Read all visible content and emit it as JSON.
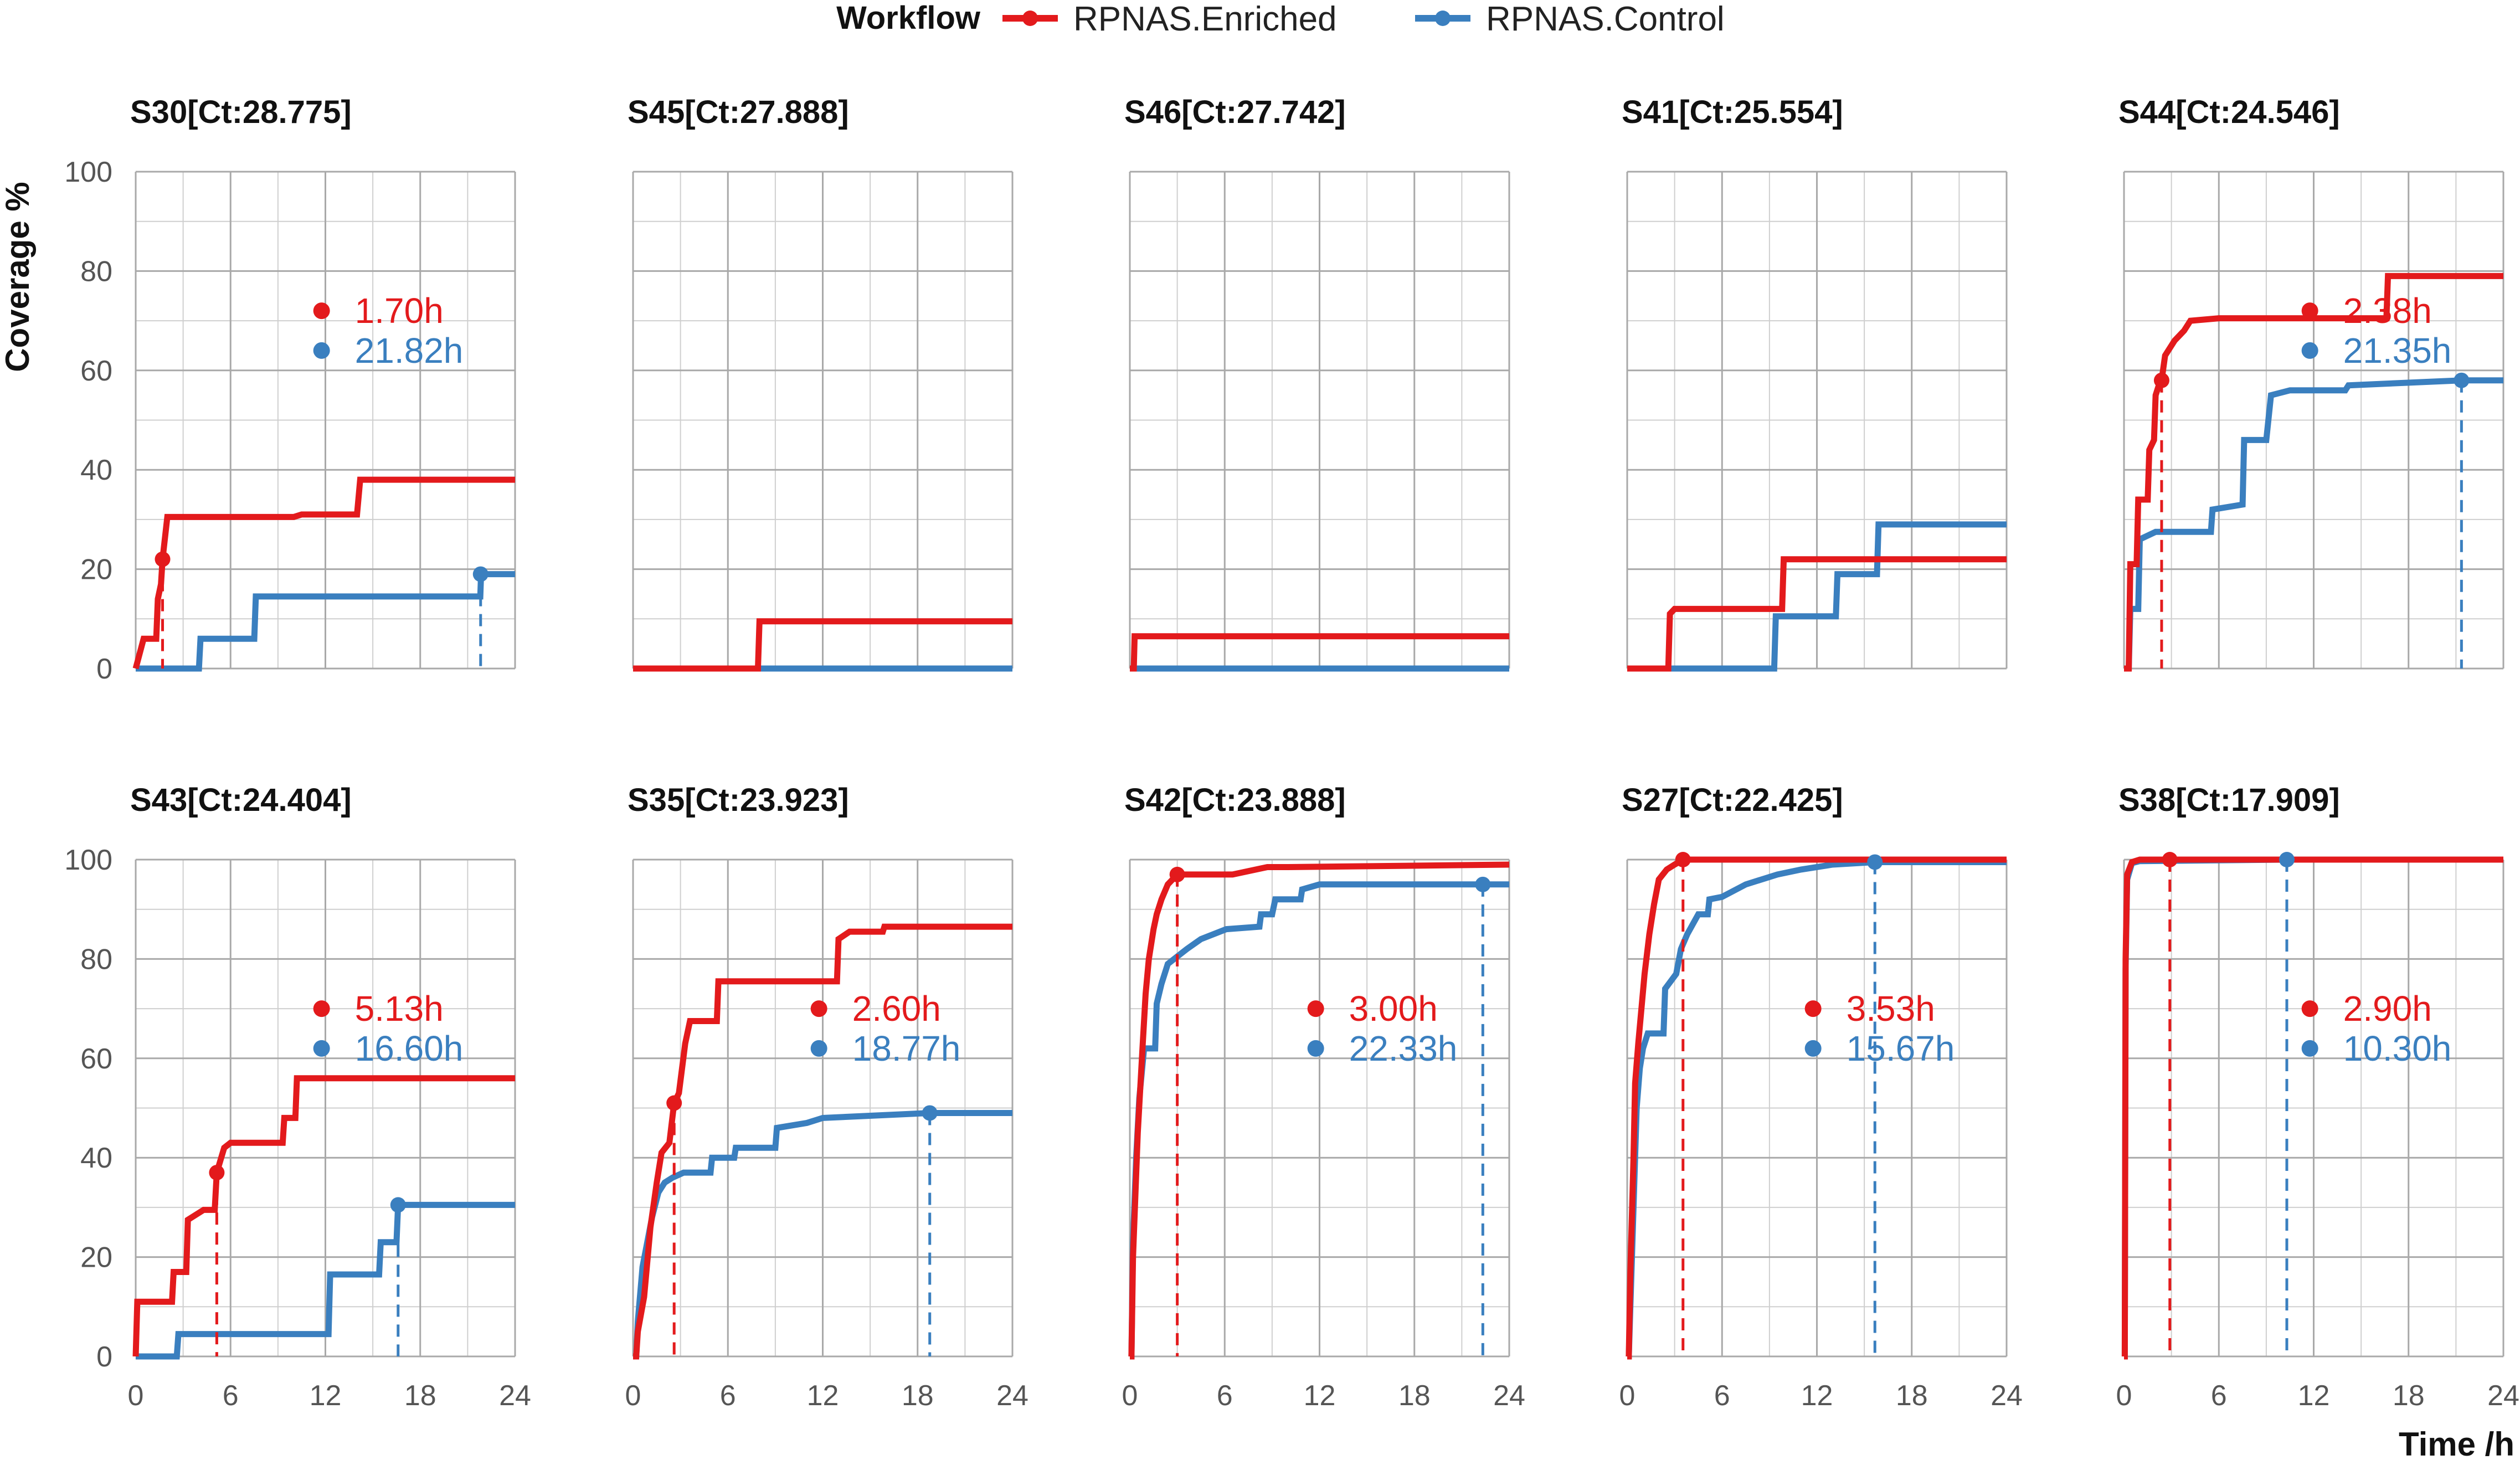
{
  "chart_data": {
    "type": "line",
    "subtype": "step",
    "legend": {
      "title": "Workflow",
      "position": "top",
      "entries": [
        {
          "name": "RPNAS.Enriched",
          "color": "#e31a1c"
        },
        {
          "name": "RPNAS.Control",
          "color": "#3a7fbf"
        }
      ]
    },
    "xlabel": "Time /h",
    "ylabel": "Coverage %",
    "xlim": [
      0,
      24
    ],
    "ylim": [
      0,
      100
    ],
    "xticks": [
      "0",
      "6",
      "12",
      "18",
      "24"
    ],
    "yticks": [
      "0",
      "20",
      "40",
      "60",
      "80",
      "100"
    ],
    "grid": true,
    "panels": [
      {
        "title": "S30[Ct:28.775]",
        "enriched": {
          "label": "1.70h",
          "marker_x": 1.7,
          "marker_y": 22,
          "points": [
            [
              0,
              0
            ],
            [
              0.5,
              6
            ],
            [
              1.3,
              6
            ],
            [
              1.4,
              14
            ],
            [
              1.6,
              17
            ],
            [
              1.7,
              22
            ],
            [
              2.0,
              30.5
            ],
            [
              10,
              30.5
            ],
            [
              10.5,
              31
            ],
            [
              14,
              31
            ],
            [
              14.2,
              38
            ],
            [
              24,
              38
            ]
          ]
        },
        "control": {
          "label": "21.82h",
          "marker_x": 21.82,
          "marker_y": 19,
          "points": [
            [
              0,
              0
            ],
            [
              4,
              0
            ],
            [
              4.1,
              6
            ],
            [
              7.5,
              6
            ],
            [
              7.6,
              14.5
            ],
            [
              21.8,
              14.5
            ],
            [
              21.85,
              19
            ],
            [
              24,
              19
            ]
          ]
        }
      },
      {
        "title": "S45[Ct:27.888]",
        "enriched": {
          "label": null,
          "marker_x": null,
          "marker_y": null,
          "points": [
            [
              0,
              0
            ],
            [
              7.9,
              0
            ],
            [
              8,
              9.5
            ],
            [
              24,
              9.5
            ]
          ]
        },
        "control": {
          "label": null,
          "marker_x": null,
          "marker_y": null,
          "points": [
            [
              0,
              0
            ],
            [
              24,
              0
            ]
          ]
        }
      },
      {
        "title": "S46[Ct:27.742]",
        "enriched": {
          "label": null,
          "marker_x": null,
          "marker_y": null,
          "points": [
            [
              0,
              0
            ],
            [
              0.25,
              0
            ],
            [
              0.3,
              6.5
            ],
            [
              24,
              6.5
            ]
          ]
        },
        "control": {
          "label": null,
          "marker_x": null,
          "marker_y": null,
          "points": [
            [
              0,
              0
            ],
            [
              24,
              0
            ]
          ]
        }
      },
      {
        "title": "S41[Ct:25.554]",
        "enriched": {
          "label": null,
          "marker_x": null,
          "marker_y": null,
          "points": [
            [
              0,
              0
            ],
            [
              2.6,
              0
            ],
            [
              2.7,
              11
            ],
            [
              3,
              12
            ],
            [
              9.8,
              12
            ],
            [
              9.9,
              22
            ],
            [
              24,
              22
            ]
          ]
        },
        "control": {
          "label": null,
          "marker_x": null,
          "marker_y": null,
          "points": [
            [
              0,
              0
            ],
            [
              9.3,
              0
            ],
            [
              9.4,
              10.5
            ],
            [
              13.2,
              10.5
            ],
            [
              13.3,
              19
            ],
            [
              15.8,
              19
            ],
            [
              15.9,
              29
            ],
            [
              24,
              29
            ]
          ]
        }
      },
      {
        "title": "S44[Ct:24.546]",
        "enriched": {
          "label": "2.38h",
          "marker_x": 2.38,
          "marker_y": 58,
          "points": [
            [
              0,
              0
            ],
            [
              0.3,
              0
            ],
            [
              0.4,
              21
            ],
            [
              0.8,
              21
            ],
            [
              0.9,
              34
            ],
            [
              1.5,
              34
            ],
            [
              1.6,
              44
            ],
            [
              1.9,
              46
            ],
            [
              2.0,
              55
            ],
            [
              2.2,
              57
            ],
            [
              2.38,
              58
            ],
            [
              2.6,
              63
            ],
            [
              3.2,
              66
            ],
            [
              3.8,
              68
            ],
            [
              4.2,
              70
            ],
            [
              6,
              70.5
            ],
            [
              10,
              70.5
            ],
            [
              16.6,
              70.5
            ],
            [
              16.7,
              79
            ],
            [
              24,
              79
            ]
          ]
        },
        "control": {
          "label": "21.35h",
          "marker_x": 21.35,
          "marker_y": 58,
          "points": [
            [
              0,
              0
            ],
            [
              0.3,
              0
            ],
            [
              0.4,
              12
            ],
            [
              0.9,
              12
            ],
            [
              1.0,
              26
            ],
            [
              2.0,
              27.5
            ],
            [
              5,
              27.5
            ],
            [
              5.5,
              27.5
            ],
            [
              5.6,
              32
            ],
            [
              7.5,
              33
            ],
            [
              7.6,
              46
            ],
            [
              9,
              46
            ],
            [
              9.3,
              55
            ],
            [
              10.5,
              56
            ],
            [
              14,
              56
            ],
            [
              14.2,
              57
            ],
            [
              21.35,
              58
            ],
            [
              24,
              58
            ]
          ]
        }
      },
      {
        "title": "S43[Ct:24.404]",
        "enriched": {
          "label": "5.13h",
          "marker_x": 5.13,
          "marker_y": 37,
          "points": [
            [
              0,
              0
            ],
            [
              0.1,
              11
            ],
            [
              2.3,
              11
            ],
            [
              2.4,
              17
            ],
            [
              3.2,
              17
            ],
            [
              3.3,
              27.5
            ],
            [
              4.3,
              29.5
            ],
            [
              5.0,
              29.5
            ],
            [
              5.13,
              37
            ],
            [
              5.6,
              42
            ],
            [
              6,
              43
            ],
            [
              9.3,
              43
            ],
            [
              9.4,
              48
            ],
            [
              10.1,
              48
            ],
            [
              10.2,
              56
            ],
            [
              24,
              56
            ]
          ]
        },
        "control": {
          "label": "16.60h",
          "marker_x": 16.6,
          "marker_y": 30.5,
          "points": [
            [
              0,
              0
            ],
            [
              2.6,
              0
            ],
            [
              2.7,
              4.5
            ],
            [
              12.2,
              4.5
            ],
            [
              12.3,
              16.5
            ],
            [
              15.4,
              16.5
            ],
            [
              15.5,
              23
            ],
            [
              16.5,
              23
            ],
            [
              16.6,
              30.5
            ],
            [
              24,
              30.5
            ]
          ]
        }
      },
      {
        "title": "S35[Ct:23.923]",
        "enriched": {
          "label": "2.60h",
          "marker_x": 2.6,
          "marker_y": 51,
          "points": [
            [
              0,
              0
            ],
            [
              0.2,
              0
            ],
            [
              0.3,
              5
            ],
            [
              0.7,
              12
            ],
            [
              1.1,
              26
            ],
            [
              1.5,
              35
            ],
            [
              1.8,
              41
            ],
            [
              2.3,
              43
            ],
            [
              2.6,
              51
            ],
            [
              2.9,
              53
            ],
            [
              3.3,
              63
            ],
            [
              3.6,
              67.5
            ],
            [
              5.3,
              67.5
            ],
            [
              5.4,
              75.5
            ],
            [
              12.9,
              75.5
            ],
            [
              13.0,
              84
            ],
            [
              13.7,
              85.5
            ],
            [
              15.8,
              85.5
            ],
            [
              15.9,
              86.5
            ],
            [
              24,
              86.5
            ]
          ]
        },
        "control": {
          "label": "18.77h",
          "marker_x": 18.77,
          "marker_y": 49,
          "points": [
            [
              0,
              0
            ],
            [
              0.2,
              0
            ],
            [
              0.3,
              7
            ],
            [
              0.6,
              18
            ],
            [
              0.9,
              23
            ],
            [
              1.2,
              28
            ],
            [
              1.6,
              33
            ],
            [
              2.0,
              35
            ],
            [
              2.5,
              36
            ],
            [
              3.2,
              37
            ],
            [
              4.9,
              37
            ],
            [
              5.0,
              40
            ],
            [
              6.4,
              40
            ],
            [
              6.5,
              42
            ],
            [
              9.0,
              42
            ],
            [
              9.1,
              46
            ],
            [
              11.0,
              47
            ],
            [
              12.0,
              48
            ],
            [
              18.77,
              49
            ],
            [
              24,
              49
            ]
          ]
        }
      },
      {
        "title": "S42[Ct:23.888]",
        "enriched": {
          "label": "3.00h",
          "marker_x": 3.0,
          "marker_y": 97,
          "points": [
            [
              0,
              0
            ],
            [
              0.1,
              0
            ],
            [
              0.2,
              20
            ],
            [
              0.5,
              45
            ],
            [
              0.8,
              62
            ],
            [
              1.0,
              73
            ],
            [
              1.2,
              80
            ],
            [
              1.5,
              86
            ],
            [
              1.7,
              89
            ],
            [
              2.0,
              92
            ],
            [
              2.4,
              95
            ],
            [
              3.0,
              97
            ],
            [
              6.5,
              97
            ],
            [
              8.7,
              98.5
            ],
            [
              10,
              98.5
            ],
            [
              24,
              99
            ]
          ]
        },
        "control": {
          "label": "22.33h",
          "marker_x": 22.33,
          "marker_y": 95,
          "points": [
            [
              0,
              0
            ],
            [
              0.1,
              0
            ],
            [
              0.2,
              23
            ],
            [
              0.4,
              40
            ],
            [
              0.6,
              52
            ],
            [
              0.9,
              62
            ],
            [
              1.6,
              62
            ],
            [
              1.7,
              71
            ],
            [
              2.0,
              75
            ],
            [
              2.4,
              79
            ],
            [
              3.0,
              80.5
            ],
            [
              3.6,
              82
            ],
            [
              4.5,
              84
            ],
            [
              6.1,
              86
            ],
            [
              8.2,
              86.5
            ],
            [
              8.3,
              89
            ],
            [
              9.0,
              89
            ],
            [
              9.2,
              92
            ],
            [
              10.8,
              92
            ],
            [
              10.9,
              94
            ],
            [
              12.0,
              95
            ],
            [
              22.33,
              95
            ],
            [
              24,
              95
            ]
          ]
        }
      },
      {
        "title": "S27[Ct:22.425]",
        "enriched": {
          "label": "3.53h",
          "marker_x": 3.53,
          "marker_y": 100,
          "points": [
            [
              0,
              0
            ],
            [
              0.1,
              0
            ],
            [
              0.2,
              17
            ],
            [
              0.4,
              40
            ],
            [
              0.5,
              55
            ],
            [
              0.7,
              63
            ],
            [
              0.9,
              70
            ],
            [
              1.1,
              77
            ],
            [
              1.4,
              85
            ],
            [
              1.7,
              91
            ],
            [
              2.0,
              96
            ],
            [
              2.5,
              98
            ],
            [
              3.0,
              99
            ],
            [
              3.53,
              100
            ],
            [
              24,
              100
            ]
          ]
        },
        "control": {
          "label": "15.67h",
          "marker_x": 15.67,
          "marker_y": 99.5,
          "points": [
            [
              0,
              0
            ],
            [
              0.1,
              0
            ],
            [
              0.2,
              10
            ],
            [
              0.4,
              30
            ],
            [
              0.6,
              50
            ],
            [
              0.8,
              58
            ],
            [
              1.0,
              62
            ],
            [
              1.3,
              65
            ],
            [
              2.3,
              65
            ],
            [
              2.4,
              74
            ],
            [
              3.1,
              77
            ],
            [
              3.4,
              82
            ],
            [
              3.8,
              85
            ],
            [
              4.5,
              89
            ],
            [
              5.1,
              89
            ],
            [
              5.2,
              92
            ],
            [
              6.0,
              92.5
            ],
            [
              7.5,
              95
            ],
            [
              9.5,
              97
            ],
            [
              11.0,
              98
            ],
            [
              13.0,
              99
            ],
            [
              15.67,
              99.5
            ],
            [
              24,
              99.5
            ]
          ]
        }
      },
      {
        "title": "S38[Ct:17.909]",
        "enriched": {
          "label": "2.90h",
          "marker_x": 2.9,
          "marker_y": 100,
          "points": [
            [
              0,
              0
            ],
            [
              0.05,
              0
            ],
            [
              0.1,
              80
            ],
            [
              0.2,
              97
            ],
            [
              0.5,
              99.5
            ],
            [
              1.0,
              100
            ],
            [
              24,
              100
            ]
          ]
        },
        "control": {
          "label": "10.30h",
          "marker_x": 10.3,
          "marker_y": 100,
          "points": [
            [
              0,
              0
            ],
            [
              0.05,
              0
            ],
            [
              0.1,
              78
            ],
            [
              0.2,
              96
            ],
            [
              0.5,
              99.3
            ],
            [
              1.0,
              99.7
            ],
            [
              10.3,
              100
            ],
            [
              24,
              100
            ]
          ]
        }
      }
    ]
  }
}
